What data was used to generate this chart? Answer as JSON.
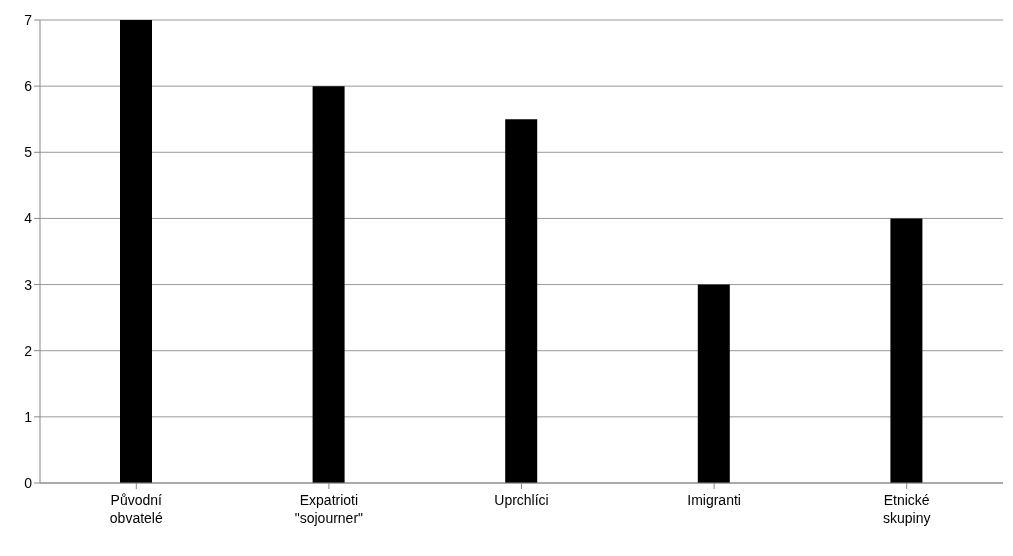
{
  "chart_data": {
    "type": "bar",
    "categories": [
      "Původní\nobvatelé",
      "Expatrioti\n\"sojourner\"",
      "Uprchlíci",
      "Imigranti",
      "Etnické\nskupiny"
    ],
    "values": [
      7,
      6,
      5.5,
      3,
      4
    ],
    "color": "#000000",
    "ylim": [
      0,
      7
    ],
    "yticks": [
      0,
      1,
      2,
      3,
      4,
      5,
      6,
      7
    ],
    "grid": "y"
  }
}
